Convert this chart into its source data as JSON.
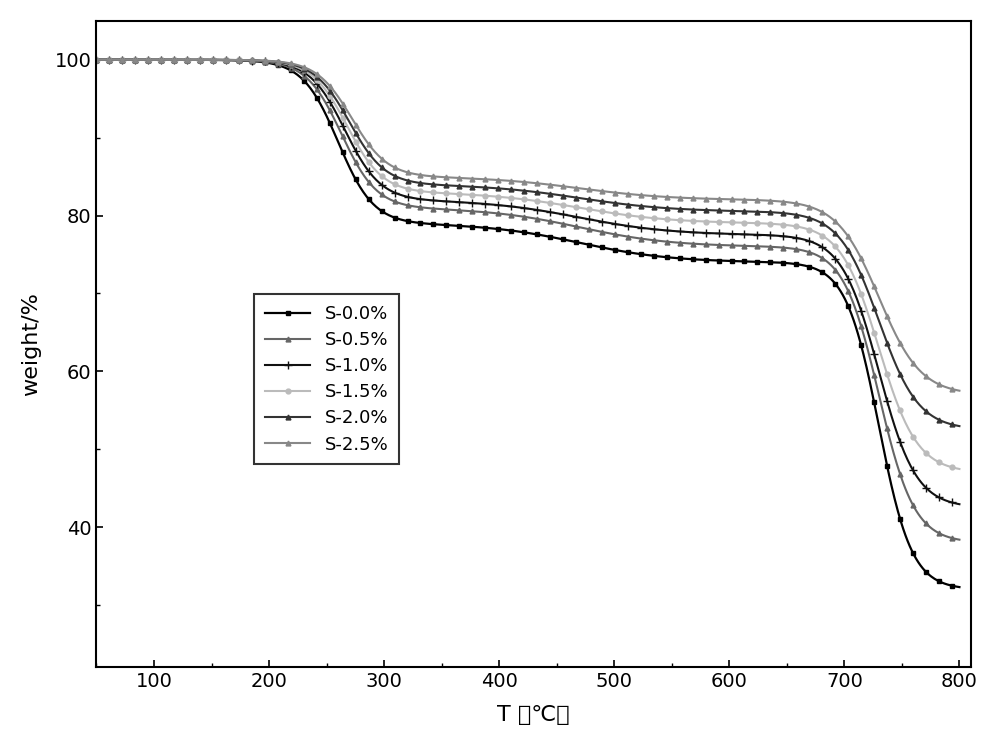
{
  "series": [
    {
      "label": "S-0.0%",
      "color": "#000000",
      "linewidth": 1.5,
      "marker": "s",
      "markersize": 3.5,
      "markevery": 12
    },
    {
      "label": "S-0.5%",
      "color": "#555555",
      "linewidth": 1.5,
      "marker": "^",
      "markersize": 3.5,
      "markevery": 12
    },
    {
      "label": "S-1.0%",
      "color": "#222222",
      "linewidth": 1.5,
      "marker": "+",
      "markersize": 5,
      "markevery": 12
    },
    {
      "label": "S-1.5%",
      "color": "#aaaaaa",
      "linewidth": 1.5,
      "marker": "o",
      "markersize": 3.5,
      "markevery": 12
    },
    {
      "label": "S-2.0%",
      "color": "#333333",
      "linewidth": 1.5,
      "marker": "^",
      "markersize": 3.5,
      "markevery": 12
    },
    {
      "label": "S-2.5%",
      "color": "#777777",
      "linewidth": 1.5,
      "marker": "^",
      "markersize": 3.5,
      "markevery": 12
    }
  ],
  "xlabel": "T （℃）",
  "ylabel": "weight/%",
  "xlim": [
    50,
    810
  ],
  "ylim": [
    22,
    105
  ],
  "xticks": [
    100,
    200,
    300,
    400,
    500,
    600,
    700,
    800
  ],
  "yticks": [
    40,
    60,
    80,
    100
  ],
  "figsize": [
    10.0,
    7.46
  ],
  "dpi": 100,
  "curve_params": [
    [
      [
        260,
        0.065,
        21
      ],
      [
        470,
        0.025,
        5
      ],
      [
        730,
        0.07,
        42
      ]
    ],
    [
      [
        263,
        0.065,
        19
      ],
      [
        470,
        0.025,
        5
      ],
      [
        730,
        0.065,
        38
      ]
    ],
    [
      [
        266,
        0.065,
        18
      ],
      [
        470,
        0.025,
        4.5
      ],
      [
        730,
        0.062,
        35
      ]
    ],
    [
      [
        268,
        0.065,
        17
      ],
      [
        470,
        0.025,
        4
      ],
      [
        730,
        0.06,
        32
      ]
    ],
    [
      [
        270,
        0.065,
        16
      ],
      [
        470,
        0.025,
        3.5
      ],
      [
        730,
        0.058,
        28
      ]
    ],
    [
      [
        272,
        0.065,
        15
      ],
      [
        470,
        0.025,
        3
      ],
      [
        730,
        0.055,
        25
      ]
    ]
  ]
}
